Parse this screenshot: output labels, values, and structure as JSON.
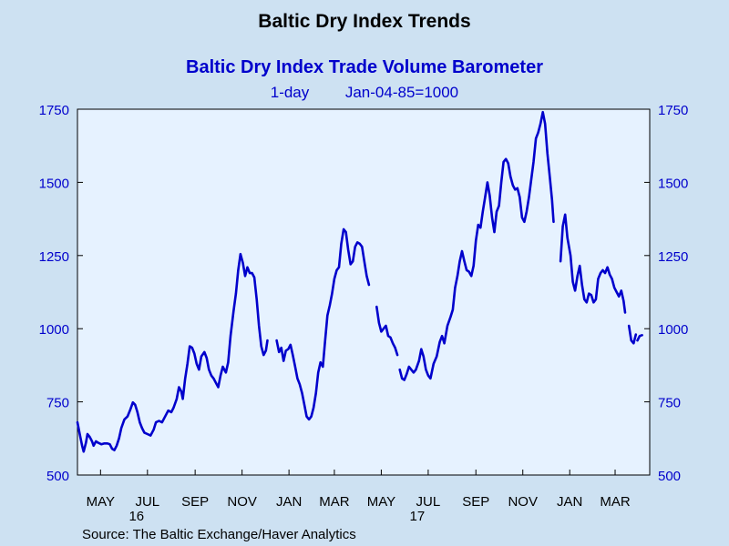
{
  "chart_data": {
    "type": "line",
    "title": "Baltic Dry Index Trends",
    "subtitle": "Baltic Dry Index Trade Volume Barometer",
    "frequency_label": "1-day",
    "base_label": "Jan-04-85=1000",
    "source": "Source:  The Baltic Exchange/Haver Analytics",
    "ylim": [
      500,
      1750
    ],
    "y_ticks": [
      500,
      750,
      1000,
      1250,
      1500,
      1750
    ],
    "y_tick_labels": [
      "500",
      "750",
      "1000",
      "1250",
      "1500",
      "1750"
    ],
    "x_range": [
      "2016-04-01",
      "2018-04-15"
    ],
    "x_tick_labels": [
      {
        "date": "2016-05-01",
        "label": "MAY"
      },
      {
        "date": "2016-07-01",
        "label": "JUL"
      },
      {
        "date": "2016-09-01",
        "label": "SEP"
      },
      {
        "date": "2016-11-01",
        "label": "NOV"
      },
      {
        "date": "2017-01-01",
        "label": "JAN"
      },
      {
        "date": "2017-03-01",
        "label": "MAR"
      },
      {
        "date": "2017-05-01",
        "label": "MAY"
      },
      {
        "date": "2017-07-01",
        "label": "JUL"
      },
      {
        "date": "2017-09-01",
        "label": "SEP"
      },
      {
        "date": "2017-11-01",
        "label": "NOV"
      },
      {
        "date": "2018-01-01",
        "label": "JAN"
      },
      {
        "date": "2018-03-01",
        "label": "MAR"
      }
    ],
    "year_labels": [
      {
        "date": "2016-07-01",
        "label": "16"
      },
      {
        "date": "2017-07-01",
        "label": "17"
      }
    ],
    "grid": false,
    "line_color": "#0000cc",
    "series": [
      {
        "segments": [
          [
            [
              "2016-04-01",
              680
            ],
            [
              "2016-04-04",
              640
            ],
            [
              "2016-04-07",
              600
            ],
            [
              "2016-04-09",
              580
            ],
            [
              "2016-04-12",
              610
            ],
            [
              "2016-04-14",
              640
            ],
            [
              "2016-04-17",
              630
            ],
            [
              "2016-04-20",
              615
            ],
            [
              "2016-04-22",
              600
            ],
            [
              "2016-04-25",
              615
            ],
            [
              "2016-04-28",
              610
            ],
            [
              "2016-05-02",
              605
            ],
            [
              "2016-05-06",
              608
            ],
            [
              "2016-05-10",
              608
            ],
            [
              "2016-05-13",
              605
            ],
            [
              "2016-05-16",
              590
            ],
            [
              "2016-05-19",
              585
            ],
            [
              "2016-05-22",
              600
            ],
            [
              "2016-05-25",
              625
            ],
            [
              "2016-05-28",
              660
            ],
            [
              "2016-06-01",
              690
            ],
            [
              "2016-06-05",
              700
            ],
            [
              "2016-06-09",
              725
            ],
            [
              "2016-06-12",
              748
            ],
            [
              "2016-06-15",
              740
            ],
            [
              "2016-06-18",
              715
            ],
            [
              "2016-06-21",
              680
            ],
            [
              "2016-06-24",
              660
            ],
            [
              "2016-06-27",
              645
            ],
            [
              "2016-07-01",
              640
            ],
            [
              "2016-07-05",
              635
            ],
            [
              "2016-07-09",
              655
            ],
            [
              "2016-07-12",
              680
            ],
            [
              "2016-07-16",
              685
            ],
            [
              "2016-07-20",
              680
            ],
            [
              "2016-07-24",
              700
            ],
            [
              "2016-07-28",
              720
            ],
            [
              "2016-08-01",
              715
            ],
            [
              "2016-08-04",
              730
            ],
            [
              "2016-08-08",
              760
            ],
            [
              "2016-08-11",
              800
            ],
            [
              "2016-08-14",
              785
            ],
            [
              "2016-08-16",
              760
            ],
            [
              "2016-08-19",
              830
            ],
            [
              "2016-08-22",
              880
            ],
            [
              "2016-08-25",
              940
            ],
            [
              "2016-08-28",
              935
            ],
            [
              "2016-08-31",
              915
            ],
            [
              "2016-09-03",
              880
            ],
            [
              "2016-09-06",
              860
            ],
            [
              "2016-09-09",
              905
            ],
            [
              "2016-09-13",
              920
            ],
            [
              "2016-09-16",
              900
            ],
            [
              "2016-09-19",
              860
            ],
            [
              "2016-09-22",
              840
            ],
            [
              "2016-09-25",
              830
            ],
            [
              "2016-09-28",
              815
            ],
            [
              "2016-10-01",
              800
            ],
            [
              "2016-10-04",
              840
            ],
            [
              "2016-10-07",
              870
            ],
            [
              "2016-10-11",
              850
            ],
            [
              "2016-10-14",
              885
            ],
            [
              "2016-10-17",
              975
            ],
            [
              "2016-10-21",
              1060
            ],
            [
              "2016-10-24",
              1120
            ],
            [
              "2016-10-27",
              1200
            ],
            [
              "2016-10-30",
              1255
            ],
            [
              "2016-11-02",
              1225
            ],
            [
              "2016-11-05",
              1180
            ],
            [
              "2016-11-08",
              1210
            ],
            [
              "2016-11-11",
              1190
            ],
            [
              "2016-11-14",
              1190
            ],
            [
              "2016-11-17",
              1175
            ],
            [
              "2016-11-20",
              1100
            ],
            [
              "2016-11-23",
              1010
            ],
            [
              "2016-11-26",
              940
            ],
            [
              "2016-11-29",
              910
            ],
            [
              "2016-12-02",
              925
            ],
            [
              "2016-12-04",
              960
            ]
          ],
          [
            [
              "2016-12-16",
              960
            ],
            [
              "2016-12-19",
              920
            ],
            [
              "2016-12-22",
              935
            ],
            [
              "2016-12-25",
              890
            ],
            [
              "2016-12-28",
              925
            ],
            [
              "2016-12-31",
              930
            ],
            [
              "2017-01-03",
              945
            ],
            [
              "2017-01-06",
              910
            ],
            [
              "2017-01-09",
              870
            ],
            [
              "2017-01-12",
              830
            ],
            [
              "2017-01-15",
              810
            ],
            [
              "2017-01-18",
              780
            ],
            [
              "2017-01-21",
              740
            ],
            [
              "2017-01-24",
              700
            ],
            [
              "2017-01-27",
              690
            ],
            [
              "2017-01-30",
              700
            ],
            [
              "2017-02-02",
              730
            ],
            [
              "2017-02-05",
              780
            ],
            [
              "2017-02-08",
              850
            ],
            [
              "2017-02-11",
              885
            ],
            [
              "2017-02-14",
              870
            ],
            [
              "2017-02-17",
              960
            ],
            [
              "2017-02-20",
              1045
            ],
            [
              "2017-02-23",
              1080
            ],
            [
              "2017-02-26",
              1120
            ],
            [
              "2017-03-01",
              1170
            ],
            [
              "2017-03-04",
              1200
            ],
            [
              "2017-03-07",
              1210
            ],
            [
              "2017-03-10",
              1290
            ],
            [
              "2017-03-13",
              1340
            ],
            [
              "2017-03-16",
              1330
            ],
            [
              "2017-03-19",
              1270
            ],
            [
              "2017-03-22",
              1220
            ],
            [
              "2017-03-25",
              1230
            ],
            [
              "2017-03-28",
              1280
            ],
            [
              "2017-03-31",
              1295
            ],
            [
              "2017-04-03",
              1290
            ],
            [
              "2017-04-06",
              1280
            ],
            [
              "2017-04-09",
              1230
            ],
            [
              "2017-04-12",
              1180
            ],
            [
              "2017-04-15",
              1150
            ]
          ],
          [
            [
              "2017-04-25",
              1075
            ],
            [
              "2017-04-28",
              1020
            ],
            [
              "2017-05-01",
              990
            ],
            [
              "2017-05-04",
              1000
            ],
            [
              "2017-05-07",
              1010
            ],
            [
              "2017-05-10",
              975
            ],
            [
              "2017-05-13",
              970
            ],
            [
              "2017-05-16",
              950
            ],
            [
              "2017-05-19",
              935
            ],
            [
              "2017-05-22",
              910
            ]
          ],
          [
            [
              "2017-05-25",
              860
            ],
            [
              "2017-05-28",
              830
            ],
            [
              "2017-05-31",
              825
            ],
            [
              "2017-06-03",
              845
            ],
            [
              "2017-06-06",
              870
            ],
            [
              "2017-06-09",
              860
            ],
            [
              "2017-06-12",
              850
            ],
            [
              "2017-06-15",
              860
            ],
            [
              "2017-06-19",
              890
            ],
            [
              "2017-06-22",
              930
            ],
            [
              "2017-06-25",
              905
            ],
            [
              "2017-06-28",
              860
            ],
            [
              "2017-07-01",
              840
            ],
            [
              "2017-07-04",
              830
            ],
            [
              "2017-07-08",
              880
            ],
            [
              "2017-07-12",
              905
            ],
            [
              "2017-07-16",
              955
            ],
            [
              "2017-07-19",
              975
            ],
            [
              "2017-07-22",
              950
            ],
            [
              "2017-07-26",
              1010
            ],
            [
              "2017-07-30",
              1040
            ],
            [
              "2017-08-02",
              1065
            ],
            [
              "2017-08-05",
              1140
            ],
            [
              "2017-08-08",
              1180
            ],
            [
              "2017-08-11",
              1230
            ],
            [
              "2017-08-14",
              1265
            ],
            [
              "2017-08-17",
              1230
            ],
            [
              "2017-08-20",
              1200
            ],
            [
              "2017-08-23",
              1195
            ],
            [
              "2017-08-26",
              1180
            ],
            [
              "2017-08-29",
              1215
            ],
            [
              "2017-09-01",
              1300
            ],
            [
              "2017-09-04",
              1355
            ],
            [
              "2017-09-07",
              1345
            ],
            [
              "2017-09-10",
              1400
            ],
            [
              "2017-09-13",
              1450
            ],
            [
              "2017-09-16",
              1500
            ],
            [
              "2017-09-19",
              1455
            ],
            [
              "2017-09-22",
              1380
            ],
            [
              "2017-09-25",
              1330
            ],
            [
              "2017-09-28",
              1400
            ],
            [
              "2017-10-01",
              1420
            ],
            [
              "2017-10-04",
              1500
            ],
            [
              "2017-10-07",
              1570
            ],
            [
              "2017-10-10",
              1580
            ],
            [
              "2017-10-13",
              1565
            ],
            [
              "2017-10-16",
              1520
            ],
            [
              "2017-10-19",
              1490
            ],
            [
              "2017-10-22",
              1475
            ],
            [
              "2017-10-25",
              1480
            ],
            [
              "2017-10-28",
              1450
            ],
            [
              "2017-10-31",
              1380
            ],
            [
              "2017-11-03",
              1365
            ],
            [
              "2017-11-06",
              1400
            ],
            [
              "2017-11-09",
              1450
            ],
            [
              "2017-11-12",
              1510
            ],
            [
              "2017-11-15",
              1570
            ],
            [
              "2017-11-18",
              1650
            ],
            [
              "2017-11-21",
              1670
            ],
            [
              "2017-11-24",
              1700
            ],
            [
              "2017-11-27",
              1740
            ],
            [
              "2017-11-30",
              1700
            ],
            [
              "2017-12-03",
              1600
            ],
            [
              "2017-12-06",
              1520
            ],
            [
              "2017-12-09",
              1440
            ],
            [
              "2017-12-11",
              1365
            ]
          ],
          [
            [
              "2017-12-20",
              1230
            ],
            [
              "2017-12-23",
              1350
            ],
            [
              "2017-12-26",
              1390
            ],
            [
              "2017-12-29",
              1310
            ],
            [
              "2018-01-02",
              1250
            ],
            [
              "2018-01-05",
              1160
            ],
            [
              "2018-01-08",
              1130
            ],
            [
              "2018-01-11",
              1180
            ],
            [
              "2018-01-14",
              1215
            ],
            [
              "2018-01-17",
              1150
            ],
            [
              "2018-01-20",
              1100
            ],
            [
              "2018-01-23",
              1090
            ],
            [
              "2018-01-26",
              1120
            ],
            [
              "2018-01-29",
              1115
            ],
            [
              "2018-02-01",
              1090
            ],
            [
              "2018-02-04",
              1100
            ],
            [
              "2018-02-07",
              1170
            ],
            [
              "2018-02-10",
              1190
            ],
            [
              "2018-02-13",
              1200
            ],
            [
              "2018-02-16",
              1190
            ],
            [
              "2018-02-19",
              1210
            ],
            [
              "2018-02-22",
              1185
            ],
            [
              "2018-02-25",
              1170
            ],
            [
              "2018-02-28",
              1140
            ],
            [
              "2018-03-03",
              1125
            ],
            [
              "2018-03-06",
              1110
            ],
            [
              "2018-03-09",
              1130
            ],
            [
              "2018-03-12",
              1095
            ],
            [
              "2018-03-14",
              1055
            ]
          ],
          [
            [
              "2018-03-19",
              1010
            ],
            [
              "2018-03-22",
              960
            ],
            [
              "2018-03-25",
              950
            ],
            [
              "2018-03-28",
              980
            ]
          ],
          [
            [
              "2018-03-30",
              960
            ],
            [
              "2018-04-02",
              975
            ],
            [
              "2018-04-05",
              978
            ]
          ]
        ]
      }
    ]
  }
}
